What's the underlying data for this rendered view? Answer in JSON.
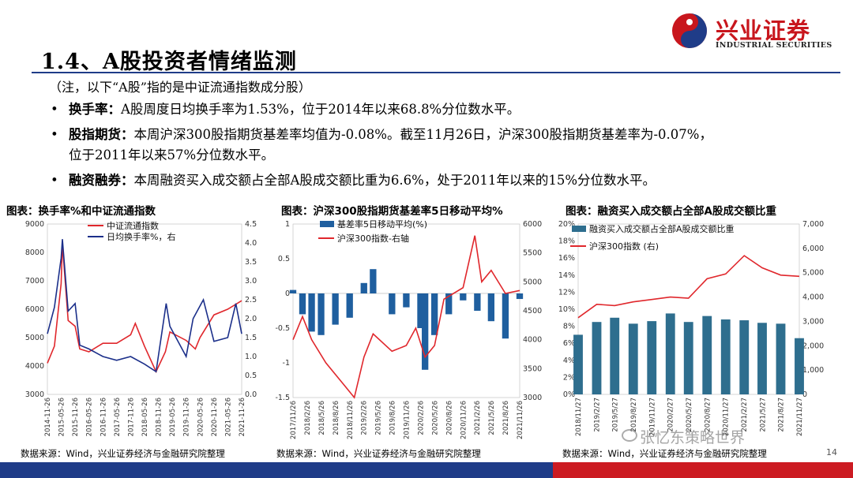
{
  "header": {
    "title": "1.4、A股投资者情绪监测",
    "logo_cn": "兴业证券",
    "logo_en": "INDUSTRIAL SECURITIES",
    "note": "（注，以下“A股”指的是中证流通指数成分股）"
  },
  "bullets": [
    {
      "marker": "•",
      "label": "换手率：",
      "text": "A股周度日均换手率为1.53%，位于2014年以来68.8%分位数水平。"
    },
    {
      "marker": "•",
      "label": "股指期货：",
      "text": "本周沪深300股指期货基差率均值为-0.08%。截至11月26日，沪深300股指期货基差率为-0.07%，",
      "text2": "位于2011年以来57%分位数水平。"
    },
    {
      "marker": "•",
      "label": "融资融券：",
      "text": "本周融资买入成交额占全部A股成交额比重为6.6%，处于2011年以来的15%分位数水平。"
    }
  ],
  "footer": {
    "page": "14",
    "watermark": "张忆东策略世界"
  },
  "colors": {
    "red": "#e0272c",
    "navy": "#1b2f8a",
    "bar_blue": "#1f5f9f",
    "bar_teal": "#2e6e8e"
  },
  "chart_data": [
    {
      "type": "line",
      "title": "图表：换手率%和中证流通指数",
      "source": "数据来源：Wind，兴业证券经济与金融研究院整理",
      "series": [
        {
          "name": "中证流通指数",
          "axis": "left",
          "color": "#e0272c",
          "x": [
            "2014-11-26",
            "2015-02-26",
            "2015-05-26",
            "2015-06-12",
            "2015-08-26",
            "2015-11-26",
            "2016-01-26",
            "2016-05-26",
            "2016-11-26",
            "2017-05-26",
            "2017-11-26",
            "2018-01-26",
            "2018-05-26",
            "2018-10-26",
            "2019-02-26",
            "2019-04-26",
            "2019-11-26",
            "2020-03-26",
            "2020-05-26",
            "2020-11-26",
            "2021-05-26",
            "2021-11-26"
          ],
          "values": [
            4100,
            4700,
            6900,
            8300,
            5600,
            5400,
            4600,
            4500,
            4800,
            4800,
            5100,
            5500,
            4700,
            3800,
            4500,
            5200,
            4900,
            4600,
            5000,
            5800,
            6000,
            6300
          ]
        },
        {
          "name": "日均换手率%，右",
          "axis": "right",
          "color": "#1b2f8a",
          "x": [
            "2014-11-26",
            "2015-02-26",
            "2015-05-26",
            "2015-06-12",
            "2015-08-26",
            "2015-11-26",
            "2016-01-26",
            "2016-05-26",
            "2016-11-26",
            "2017-05-26",
            "2017-11-26",
            "2018-05-26",
            "2018-10-26",
            "2019-03-08",
            "2019-04-26",
            "2019-11-26",
            "2020-02-26",
            "2020-07-10",
            "2020-11-26",
            "2021-05-26",
            "2021-09-10",
            "2021-11-26"
          ],
          "values": [
            1.6,
            2.3,
            3.6,
            4.1,
            2.2,
            2.4,
            1.3,
            1.2,
            1.0,
            0.9,
            1.0,
            0.8,
            0.6,
            2.4,
            1.8,
            1.0,
            2.0,
            2.5,
            1.4,
            1.5,
            2.4,
            1.6
          ]
        }
      ],
      "x_ticks": [
        "2014-11-26",
        "2015-05-26",
        "2015-11-26",
        "2016-05-26",
        "2016-11-26",
        "2017-05-26",
        "2017-11-26",
        "2018-05-26",
        "2018-11-26",
        "2019-05-26",
        "2019-11-26",
        "2020-05-26",
        "2020-11-26",
        "2021-05-26",
        "2021-11-26"
      ],
      "left_axis": {
        "ylim": [
          3000,
          9000
        ],
        "ticks": [
          "3000",
          "4000",
          "5000",
          "6000",
          "7000",
          "8000",
          "9000"
        ]
      },
      "right_axis": {
        "ylim": [
          0,
          4.5
        ],
        "ticks": [
          "0.0",
          "0.5",
          "1.0",
          "1.5",
          "2.0",
          "2.5",
          "3.0",
          "3.5",
          "4.0",
          "4.5"
        ]
      },
      "legend": "top-right"
    },
    {
      "type": "bar",
      "title": "图表：沪深300股指期货基差率5日移动平均%",
      "source": "数据来源：Wind，兴业证券经济与金融研究院整理",
      "series": [
        {
          "name": "基差率5日移动平均(%)",
          "axis": "left",
          "type": "bar",
          "color": "#1f5f9f",
          "x": [
            "2017-11-26",
            "2018-01-26",
            "2018-03-26",
            "2018-05-26",
            "2018-08-26",
            "2018-11-26",
            "2019-02-26",
            "2019-04-26",
            "2019-08-26",
            "2019-11-26",
            "2020-02-26",
            "2020-03-26",
            "2020-05-26",
            "2020-08-26",
            "2020-11-26",
            "2021-02-26",
            "2021-05-26",
            "2021-08-26",
            "2021-11-26"
          ],
          "values": [
            0.05,
            -0.3,
            -0.55,
            -0.6,
            -0.45,
            -0.35,
            0.15,
            0.35,
            -0.3,
            -0.2,
            -0.5,
            -1.1,
            -0.6,
            -0.3,
            -0.1,
            -0.25,
            -0.4,
            -0.65,
            -0.08
          ]
        },
        {
          "name": "沪深300指数-右轴",
          "axis": "right",
          "type": "line",
          "color": "#e0272c",
          "x": [
            "2017-11-26",
            "2018-01-26",
            "2018-03-26",
            "2018-06-26",
            "2018-10-26",
            "2018-12-26",
            "2019-02-26",
            "2019-04-26",
            "2019-08-26",
            "2019-11-26",
            "2020-01-26",
            "2020-03-26",
            "2020-05-26",
            "2020-07-26",
            "2020-11-26",
            "2021-02-10",
            "2021-03-26",
            "2021-05-26",
            "2021-08-26",
            "2021-11-26"
          ],
          "values": [
            4000,
            4400,
            4000,
            3600,
            3200,
            3000,
            3700,
            4100,
            3800,
            3900,
            4200,
            3700,
            3900,
            4700,
            4900,
            5800,
            5000,
            5200,
            4800,
            4850
          ]
        }
      ],
      "x_ticks": [
        "2017/11/26",
        "2018/2/26",
        "2018/5/26",
        "2018/8/26",
        "2018/11/26",
        "2019/2/26",
        "2019/5/26",
        "2019/8/26",
        "2019/11/26",
        "2020/2/26",
        "2020/5/26",
        "2020/8/26",
        "2020/11/26",
        "2021/2/26",
        "2021/5/26",
        "2021/8/26",
        "2021/11/26"
      ],
      "left_axis": {
        "ylim": [
          -1.5,
          1
        ],
        "ticks": [
          "-1.5",
          "-1",
          "-0.5",
          "0",
          "0.5",
          "1"
        ]
      },
      "right_axis": {
        "ylim": [
          3000,
          6000
        ],
        "ticks": [
          "3000",
          "3500",
          "4000",
          "4500",
          "5000",
          "5500",
          "6000"
        ]
      },
      "legend": "top"
    },
    {
      "type": "bar",
      "title": "图表：融资买入成交额占全部A股成交额比重",
      "source": "数据来源：Wind，兴业证券经济与金融研究院整理",
      "series": [
        {
          "name": "融资买入成交额占全部A股成交额比重",
          "axis": "left",
          "type": "bar",
          "color": "#2e6e8e",
          "x": [
            "2018-11-27",
            "2019-02-27",
            "2019-05-27",
            "2019-08-27",
            "2019-11-27",
            "2020-02-27",
            "2020-05-27",
            "2020-08-27",
            "2020-11-27",
            "2021-02-27",
            "2021-05-27",
            "2021-08-27",
            "2021-11-27"
          ],
          "values": [
            7.0,
            8.5,
            9.0,
            8.3,
            8.6,
            9.5,
            8.5,
            9.2,
            8.8,
            8.7,
            8.4,
            8.3,
            6.6
          ]
        },
        {
          "name": "沪深300指数 (右)",
          "axis": "right",
          "type": "line",
          "color": "#e0272c",
          "x": [
            "2018-11-27",
            "2019-02-27",
            "2019-05-27",
            "2019-08-27",
            "2019-11-27",
            "2020-02-27",
            "2020-05-27",
            "2020-08-27",
            "2020-11-27",
            "2021-02-27",
            "2021-05-27",
            "2021-08-27",
            "2021-11-27"
          ],
          "values": [
            3150,
            3700,
            3650,
            3800,
            3900,
            4000,
            3950,
            4750,
            4950,
            5700,
            5200,
            4900,
            4850
          ]
        }
      ],
      "x_ticks": [
        "2018/11/27",
        "2019/2/27",
        "2019/5/27",
        "2019/8/27",
        "2019/11/27",
        "2020/2/27",
        "2020/5/27",
        "2020/8/27",
        "2020/11/27",
        "2021/2/27",
        "2021/5/27",
        "2021/8/27",
        "2021/11/27"
      ],
      "left_axis": {
        "ylim": [
          0,
          20
        ],
        "ticks": [
          "0%",
          "2%",
          "4%",
          "6%",
          "8%",
          "10%",
          "12%",
          "14%",
          "16%",
          "18%",
          "20%"
        ]
      },
      "right_axis": {
        "ylim": [
          0,
          7000
        ],
        "ticks": [
          "0",
          "1,000",
          "2,000",
          "3,000",
          "4,000",
          "5,000",
          "6,000",
          "7,000"
        ]
      },
      "legend": "top"
    }
  ]
}
